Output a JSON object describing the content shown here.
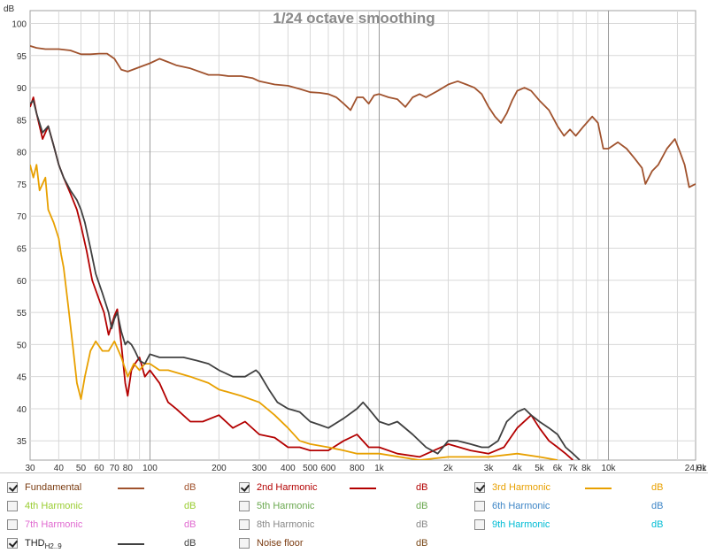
{
  "chart_data": {
    "type": "line",
    "title": "1/24 octave smoothing",
    "ylabel": "dB",
    "xlabel": "Hz",
    "xscale": "log",
    "xlim": [
      30,
      24000
    ],
    "ylim": [
      32,
      102
    ],
    "y_ticks": [
      100,
      95,
      90,
      85,
      80,
      75,
      70,
      65,
      60,
      55,
      50,
      45,
      40,
      35
    ],
    "x_ticks": [
      {
        "v": 30,
        "label": "30"
      },
      {
        "v": 40,
        "label": "40"
      },
      {
        "v": 50,
        "label": "50"
      },
      {
        "v": 60,
        "label": "60"
      },
      {
        "v": 70,
        "label": "70"
      },
      {
        "v": 80,
        "label": "80"
      },
      {
        "v": 100,
        "label": "100"
      },
      {
        "v": 200,
        "label": "200"
      },
      {
        "v": 300,
        "label": "300"
      },
      {
        "v": 400,
        "label": "400"
      },
      {
        "v": 500,
        "label": "500"
      },
      {
        "v": 600,
        "label": "600"
      },
      {
        "v": 800,
        "label": "800"
      },
      {
        "v": 1000,
        "label": "1k"
      },
      {
        "v": 2000,
        "label": "2k"
      },
      {
        "v": 3000,
        "label": "3k"
      },
      {
        "v": 4000,
        "label": "4k"
      },
      {
        "v": 5000,
        "label": "5k"
      },
      {
        "v": 6000,
        "label": "6k"
      },
      {
        "v": 7000,
        "label": "7k"
      },
      {
        "v": 8000,
        "label": "8k"
      },
      {
        "v": 10000,
        "label": "10k"
      },
      {
        "v": 24000,
        "label": "24,0k"
      }
    ],
    "grid": true,
    "series": [
      {
        "name": "Fundamental",
        "color": "#a0522d",
        "points": [
          [
            30,
            96.5
          ],
          [
            32,
            96.2
          ],
          [
            35,
            96
          ],
          [
            40,
            96
          ],
          [
            45,
            95.8
          ],
          [
            50,
            95.2
          ],
          [
            55,
            95.2
          ],
          [
            60,
            95.3
          ],
          [
            65,
            95.3
          ],
          [
            70,
            94.5
          ],
          [
            75,
            92.8
          ],
          [
            80,
            92.5
          ],
          [
            90,
            93.2
          ],
          [
            100,
            93.8
          ],
          [
            110,
            94.5
          ],
          [
            120,
            94
          ],
          [
            130,
            93.5
          ],
          [
            150,
            93
          ],
          [
            180,
            92
          ],
          [
            200,
            92
          ],
          [
            220,
            91.8
          ],
          [
            250,
            91.8
          ],
          [
            280,
            91.5
          ],
          [
            300,
            91
          ],
          [
            350,
            90.5
          ],
          [
            400,
            90.3
          ],
          [
            450,
            89.8
          ],
          [
            500,
            89.3
          ],
          [
            550,
            89.2
          ],
          [
            600,
            89
          ],
          [
            650,
            88.5
          ],
          [
            700,
            87.5
          ],
          [
            750,
            86.5
          ],
          [
            800,
            88.5
          ],
          [
            850,
            88.5
          ],
          [
            900,
            87.5
          ],
          [
            950,
            88.8
          ],
          [
            1000,
            89
          ],
          [
            1100,
            88.5
          ],
          [
            1200,
            88.2
          ],
          [
            1300,
            87
          ],
          [
            1400,
            88.5
          ],
          [
            1500,
            89
          ],
          [
            1600,
            88.5
          ],
          [
            1800,
            89.5
          ],
          [
            2000,
            90.5
          ],
          [
            2200,
            91
          ],
          [
            2400,
            90.5
          ],
          [
            2600,
            90
          ],
          [
            2800,
            89
          ],
          [
            3000,
            87
          ],
          [
            3200,
            85.5
          ],
          [
            3400,
            84.5
          ],
          [
            3600,
            86
          ],
          [
            3800,
            88
          ],
          [
            4000,
            89.5
          ],
          [
            4300,
            90
          ],
          [
            4600,
            89.5
          ],
          [
            5000,
            88
          ],
          [
            5500,
            86.5
          ],
          [
            6000,
            84
          ],
          [
            6400,
            82.5
          ],
          [
            6800,
            83.5
          ],
          [
            7200,
            82.5
          ],
          [
            7800,
            84
          ],
          [
            8500,
            85.5
          ],
          [
            9000,
            84.5
          ],
          [
            9500,
            80.5
          ],
          [
            10000,
            80.5
          ],
          [
            11000,
            81.5
          ],
          [
            12000,
            80.5
          ],
          [
            13000,
            79
          ],
          [
            14000,
            77.5
          ],
          [
            14500,
            75
          ],
          [
            15500,
            77
          ],
          [
            16500,
            78
          ],
          [
            18000,
            80.5
          ],
          [
            19500,
            82
          ],
          [
            20500,
            80
          ],
          [
            21500,
            78
          ],
          [
            22500,
            74.5
          ],
          [
            24000,
            75
          ]
        ]
      },
      {
        "name": "2nd Harmonic",
        "color": "#b30000",
        "points": [
          [
            30,
            87
          ],
          [
            31,
            88.5
          ],
          [
            32,
            86
          ],
          [
            34,
            82
          ],
          [
            36,
            84
          ],
          [
            38,
            81
          ],
          [
            40,
            78
          ],
          [
            42,
            76
          ],
          [
            45,
            73.5
          ],
          [
            48,
            71
          ],
          [
            50,
            68.5
          ],
          [
            53,
            64.5
          ],
          [
            56,
            60
          ],
          [
            60,
            57
          ],
          [
            63,
            55
          ],
          [
            66,
            51.5
          ],
          [
            68,
            53
          ],
          [
            70,
            54.5
          ],
          [
            72,
            55.5
          ],
          [
            75,
            50
          ],
          [
            78,
            44
          ],
          [
            80,
            42
          ],
          [
            83,
            46
          ],
          [
            86,
            47
          ],
          [
            90,
            48
          ],
          [
            95,
            45
          ],
          [
            100,
            46
          ],
          [
            110,
            44
          ],
          [
            120,
            41
          ],
          [
            130,
            40
          ],
          [
            150,
            38
          ],
          [
            170,
            38
          ],
          [
            200,
            39
          ],
          [
            230,
            37
          ],
          [
            260,
            38
          ],
          [
            300,
            36
          ],
          [
            350,
            35.5
          ],
          [
            400,
            34
          ],
          [
            450,
            34
          ],
          [
            500,
            33.5
          ],
          [
            600,
            33.5
          ],
          [
            700,
            35
          ],
          [
            800,
            36
          ],
          [
            900,
            34
          ],
          [
            1000,
            34
          ],
          [
            1200,
            33
          ],
          [
            1500,
            32.5
          ],
          [
            2000,
            34.5
          ],
          [
            2500,
            33.5
          ],
          [
            3000,
            33
          ],
          [
            3500,
            34
          ],
          [
            4000,
            37
          ],
          [
            4600,
            39
          ],
          [
            5000,
            37
          ],
          [
            5500,
            35
          ],
          [
            6000,
            34
          ],
          [
            6500,
            33
          ],
          [
            7000,
            32
          ]
        ]
      },
      {
        "name": "3rd Harmonic",
        "color": "#e8a000",
        "points": [
          [
            30,
            78
          ],
          [
            31,
            76
          ],
          [
            32,
            78
          ],
          [
            33,
            74
          ],
          [
            35,
            76
          ],
          [
            36,
            71
          ],
          [
            38,
            69
          ],
          [
            40,
            66.5
          ],
          [
            41,
            64
          ],
          [
            42,
            62
          ],
          [
            44,
            56
          ],
          [
            46,
            50
          ],
          [
            48,
            44
          ],
          [
            50,
            41.5
          ],
          [
            52,
            45
          ],
          [
            55,
            49
          ],
          [
            58,
            50.5
          ],
          [
            62,
            49
          ],
          [
            66,
            49
          ],
          [
            70,
            50.5
          ],
          [
            75,
            48
          ],
          [
            80,
            45
          ],
          [
            85,
            47
          ],
          [
            90,
            46
          ],
          [
            95,
            47
          ],
          [
            100,
            47
          ],
          [
            110,
            46
          ],
          [
            120,
            46
          ],
          [
            150,
            45
          ],
          [
            180,
            44
          ],
          [
            200,
            43
          ],
          [
            250,
            42
          ],
          [
            300,
            41
          ],
          [
            350,
            39
          ],
          [
            400,
            37
          ],
          [
            450,
            35
          ],
          [
            500,
            34.5
          ],
          [
            600,
            34
          ],
          [
            700,
            33.5
          ],
          [
            800,
            33
          ],
          [
            1000,
            33
          ],
          [
            1500,
            32
          ],
          [
            2000,
            32.5
          ],
          [
            3000,
            32.5
          ],
          [
            4000,
            33
          ],
          [
            5000,
            32.5
          ],
          [
            6000,
            32
          ]
        ]
      },
      {
        "name": "THDH2..9",
        "color": "#404040",
        "points": [
          [
            30,
            87.5
          ],
          [
            31,
            88
          ],
          [
            32,
            86
          ],
          [
            34,
            83
          ],
          [
            36,
            84
          ],
          [
            38,
            81
          ],
          [
            40,
            78
          ],
          [
            42,
            76
          ],
          [
            45,
            74
          ],
          [
            48,
            72.5
          ],
          [
            50,
            71
          ],
          [
            52,
            69
          ],
          [
            55,
            65
          ],
          [
            58,
            61
          ],
          [
            62,
            58
          ],
          [
            66,
            55
          ],
          [
            68,
            52.5
          ],
          [
            70,
            54
          ],
          [
            72,
            55
          ],
          [
            75,
            52
          ],
          [
            78,
            50
          ],
          [
            80,
            50.5
          ],
          [
            83,
            50
          ],
          [
            86,
            49
          ],
          [
            90,
            47.5
          ],
          [
            95,
            47
          ],
          [
            100,
            48.5
          ],
          [
            110,
            48
          ],
          [
            120,
            48
          ],
          [
            140,
            48
          ],
          [
            160,
            47.5
          ],
          [
            180,
            47
          ],
          [
            200,
            46
          ],
          [
            230,
            45
          ],
          [
            260,
            45
          ],
          [
            290,
            46
          ],
          [
            300,
            45.5
          ],
          [
            330,
            43
          ],
          [
            360,
            41
          ],
          [
            400,
            40
          ],
          [
            450,
            39.5
          ],
          [
            500,
            38
          ],
          [
            550,
            37.5
          ],
          [
            600,
            37
          ],
          [
            700,
            38.5
          ],
          [
            800,
            40
          ],
          [
            850,
            41
          ],
          [
            900,
            40
          ],
          [
            1000,
            38
          ],
          [
            1100,
            37.5
          ],
          [
            1200,
            38
          ],
          [
            1400,
            36
          ],
          [
            1600,
            34
          ],
          [
            1800,
            33
          ],
          [
            2000,
            35
          ],
          [
            2200,
            35
          ],
          [
            2500,
            34.5
          ],
          [
            2800,
            34
          ],
          [
            3000,
            34
          ],
          [
            3300,
            35
          ],
          [
            3600,
            38
          ],
          [
            4000,
            39.5
          ],
          [
            4300,
            40
          ],
          [
            4600,
            39
          ],
          [
            5000,
            38
          ],
          [
            5500,
            37
          ],
          [
            6000,
            36
          ],
          [
            6500,
            34
          ],
          [
            7000,
            33
          ],
          [
            7500,
            32
          ]
        ]
      }
    ]
  },
  "legend": {
    "items": [
      {
        "label": "Fundamental",
        "sub": "",
        "checked": true,
        "color": "#a0522d",
        "unit": "dB",
        "line": true
      },
      {
        "label": "2nd Harmonic",
        "sub": "",
        "checked": true,
        "color": "#b30000",
        "unit": "dB",
        "line": true
      },
      {
        "label": "3rd Harmonic",
        "sub": "",
        "checked": true,
        "color": "#e8a000",
        "unit": "dB",
        "line": true
      },
      {
        "label": "4th Harmonic",
        "sub": "",
        "checked": false,
        "color": "#9acd32",
        "unit": "dB",
        "line": false
      },
      {
        "label": "5th Harmonic",
        "sub": "",
        "checked": false,
        "color": "#6aa84f",
        "unit": "dB",
        "line": false
      },
      {
        "label": "6th Harmonic",
        "sub": "",
        "checked": false,
        "color": "#3d85c6",
        "unit": "dB",
        "line": false
      },
      {
        "label": "7th Harmonic",
        "sub": "",
        "checked": false,
        "color": "#e06ad0",
        "unit": "dB",
        "line": false
      },
      {
        "label": "8th Harmonic",
        "sub": "",
        "checked": false,
        "color": "#888888",
        "unit": "dB",
        "line": false
      },
      {
        "label": "9th Harmonic",
        "sub": "",
        "checked": false,
        "color": "#00bcd4",
        "unit": "dB",
        "line": false
      },
      {
        "label": "THD",
        "sub": "H2..9",
        "checked": true,
        "color": "#404040",
        "unit": "dB",
        "line": true
      },
      {
        "label": "Noise floor",
        "sub": "",
        "checked": false,
        "color": "#7a4a1a",
        "unit": "dB",
        "line": false
      }
    ]
  }
}
